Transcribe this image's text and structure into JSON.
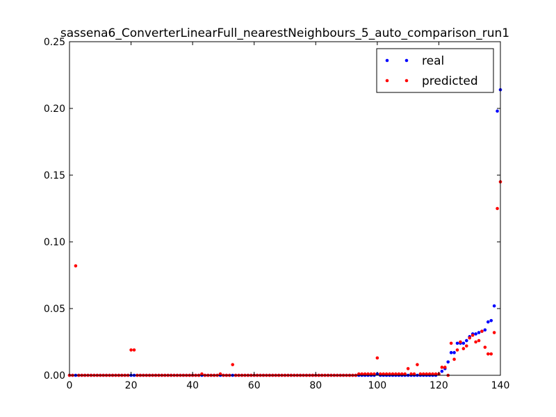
{
  "chart_data": {
    "type": "scatter",
    "title": "sassena6_ConverterLinearFull_nearestNeighbours_5_auto_comparison_run1",
    "xlabel": "",
    "ylabel": "",
    "xlim": [
      0,
      140
    ],
    "ylim": [
      0,
      0.25
    ],
    "x_ticks": [
      "0",
      "20",
      "40",
      "60",
      "80",
      "100",
      "120",
      "140"
    ],
    "y_ticks": [
      "0.00",
      "0.05",
      "0.10",
      "0.15",
      "0.20",
      "0.25"
    ],
    "grid": false,
    "legend_position": "top-right",
    "series": [
      {
        "name": "real",
        "color": "#0000ff",
        "points": [
          [
            0,
            0
          ],
          [
            1,
            0
          ],
          [
            2,
            0
          ],
          [
            3,
            0
          ],
          [
            4,
            0
          ],
          [
            5,
            0
          ],
          [
            6,
            0
          ],
          [
            7,
            0
          ],
          [
            8,
            0
          ],
          [
            9,
            0
          ],
          [
            10,
            0
          ],
          [
            11,
            0
          ],
          [
            12,
            0
          ],
          [
            13,
            0
          ],
          [
            14,
            0
          ],
          [
            15,
            0
          ],
          [
            16,
            0
          ],
          [
            17,
            0
          ],
          [
            18,
            0
          ],
          [
            19,
            0
          ],
          [
            20,
            0
          ],
          [
            21,
            0
          ],
          [
            22,
            0
          ],
          [
            23,
            0
          ],
          [
            24,
            0
          ],
          [
            25,
            0
          ],
          [
            26,
            0
          ],
          [
            27,
            0
          ],
          [
            28,
            0
          ],
          [
            29,
            0
          ],
          [
            30,
            0
          ],
          [
            31,
            0
          ],
          [
            32,
            0
          ],
          [
            33,
            0
          ],
          [
            34,
            0
          ],
          [
            35,
            0
          ],
          [
            36,
            0
          ],
          [
            37,
            0
          ],
          [
            38,
            0
          ],
          [
            39,
            0
          ],
          [
            40,
            0
          ],
          [
            41,
            0
          ],
          [
            42,
            0
          ],
          [
            43,
            0
          ],
          [
            44,
            0
          ],
          [
            45,
            0
          ],
          [
            46,
            0
          ],
          [
            47,
            0
          ],
          [
            48,
            0
          ],
          [
            49,
            0
          ],
          [
            50,
            0
          ],
          [
            51,
            0
          ],
          [
            52,
            0
          ],
          [
            53,
            0
          ],
          [
            54,
            0
          ],
          [
            55,
            0
          ],
          [
            56,
            0
          ],
          [
            57,
            0
          ],
          [
            58,
            0
          ],
          [
            59,
            0
          ],
          [
            60,
            0
          ],
          [
            61,
            0
          ],
          [
            62,
            0
          ],
          [
            63,
            0
          ],
          [
            64,
            0
          ],
          [
            65,
            0
          ],
          [
            66,
            0
          ],
          [
            67,
            0
          ],
          [
            68,
            0
          ],
          [
            69,
            0
          ],
          [
            70,
            0
          ],
          [
            71,
            0
          ],
          [
            72,
            0
          ],
          [
            73,
            0
          ],
          [
            74,
            0
          ],
          [
            75,
            0
          ],
          [
            76,
            0
          ],
          [
            77,
            0
          ],
          [
            78,
            0
          ],
          [
            79,
            0
          ],
          [
            80,
            0
          ],
          [
            81,
            0
          ],
          [
            82,
            0
          ],
          [
            83,
            0
          ],
          [
            84,
            0
          ],
          [
            85,
            0
          ],
          [
            86,
            0
          ],
          [
            87,
            0
          ],
          [
            88,
            0
          ],
          [
            89,
            0
          ],
          [
            90,
            0
          ],
          [
            91,
            0
          ],
          [
            92,
            0
          ],
          [
            93,
            0
          ],
          [
            94,
            0
          ],
          [
            95,
            0
          ],
          [
            96,
            0
          ],
          [
            97,
            0
          ],
          [
            98,
            0
          ],
          [
            99,
            0
          ],
          [
            100,
            0.001
          ],
          [
            101,
            0
          ],
          [
            102,
            0
          ],
          [
            103,
            0
          ],
          [
            104,
            0
          ],
          [
            105,
            0
          ],
          [
            106,
            0
          ],
          [
            107,
            0
          ],
          [
            108,
            0
          ],
          [
            109,
            0
          ],
          [
            110,
            0
          ],
          [
            111,
            0
          ],
          [
            112,
            0
          ],
          [
            113,
            0
          ],
          [
            114,
            0
          ],
          [
            115,
            0
          ],
          [
            116,
            0
          ],
          [
            117,
            0
          ],
          [
            118,
            0
          ],
          [
            119,
            0
          ],
          [
            120,
            0.001
          ],
          [
            121,
            0.003
          ],
          [
            122,
            0.005
          ],
          [
            123,
            0.01
          ],
          [
            124,
            0.017
          ],
          [
            125,
            0.017
          ],
          [
            126,
            0.024
          ],
          [
            127,
            0.024
          ],
          [
            128,
            0.024
          ],
          [
            129,
            0.026
          ],
          [
            130,
            0.029
          ],
          [
            131,
            0.031
          ],
          [
            132,
            0.031
          ],
          [
            133,
            0.032
          ],
          [
            134,
            0.033
          ],
          [
            135,
            0.034
          ],
          [
            136,
            0.04
          ],
          [
            137,
            0.041
          ],
          [
            138,
            0.052
          ],
          [
            139,
            0.198
          ],
          [
            140,
            0.214
          ]
        ]
      },
      {
        "name": "predicted",
        "color": "#ff0000",
        "points": [
          [
            0,
            0
          ],
          [
            1,
            0
          ],
          [
            2,
            0.082
          ],
          [
            3,
            0
          ],
          [
            4,
            0
          ],
          [
            5,
            0
          ],
          [
            6,
            0
          ],
          [
            7,
            0
          ],
          [
            8,
            0
          ],
          [
            9,
            0
          ],
          [
            10,
            0
          ],
          [
            11,
            0
          ],
          [
            12,
            0
          ],
          [
            13,
            0
          ],
          [
            14,
            0
          ],
          [
            15,
            0
          ],
          [
            16,
            0
          ],
          [
            17,
            0
          ],
          [
            18,
            0
          ],
          [
            19,
            0
          ],
          [
            20,
            0.019
          ],
          [
            21,
            0.019
          ],
          [
            22,
            0
          ],
          [
            23,
            0
          ],
          [
            24,
            0
          ],
          [
            25,
            0
          ],
          [
            26,
            0
          ],
          [
            27,
            0
          ],
          [
            28,
            0
          ],
          [
            29,
            0
          ],
          [
            30,
            0
          ],
          [
            31,
            0
          ],
          [
            32,
            0
          ],
          [
            33,
            0
          ],
          [
            34,
            0
          ],
          [
            35,
            0
          ],
          [
            36,
            0
          ],
          [
            37,
            0
          ],
          [
            38,
            0
          ],
          [
            39,
            0
          ],
          [
            40,
            0
          ],
          [
            41,
            0
          ],
          [
            42,
            0
          ],
          [
            43,
            0.001
          ],
          [
            44,
            0
          ],
          [
            45,
            0
          ],
          [
            46,
            0
          ],
          [
            47,
            0
          ],
          [
            48,
            0
          ],
          [
            49,
            0.001
          ],
          [
            50,
            0
          ],
          [
            51,
            0
          ],
          [
            52,
            0
          ],
          [
            53,
            0.008
          ],
          [
            54,
            0
          ],
          [
            55,
            0
          ],
          [
            56,
            0
          ],
          [
            57,
            0
          ],
          [
            58,
            0
          ],
          [
            59,
            0
          ],
          [
            60,
            0
          ],
          [
            61,
            0
          ],
          [
            62,
            0
          ],
          [
            63,
            0
          ],
          [
            64,
            0
          ],
          [
            65,
            0
          ],
          [
            66,
            0
          ],
          [
            67,
            0
          ],
          [
            68,
            0
          ],
          [
            69,
            0
          ],
          [
            70,
            0
          ],
          [
            71,
            0
          ],
          [
            72,
            0
          ],
          [
            73,
            0
          ],
          [
            74,
            0
          ],
          [
            75,
            0
          ],
          [
            76,
            0
          ],
          [
            77,
            0
          ],
          [
            78,
            0
          ],
          [
            79,
            0
          ],
          [
            80,
            0
          ],
          [
            81,
            0
          ],
          [
            82,
            0
          ],
          [
            83,
            0
          ],
          [
            84,
            0
          ],
          [
            85,
            0
          ],
          [
            86,
            0
          ],
          [
            87,
            0
          ],
          [
            88,
            0
          ],
          [
            89,
            0
          ],
          [
            90,
            0
          ],
          [
            91,
            0
          ],
          [
            92,
            0
          ],
          [
            93,
            0
          ],
          [
            94,
            0.001
          ],
          [
            95,
            0.001
          ],
          [
            96,
            0.001
          ],
          [
            97,
            0.001
          ],
          [
            98,
            0.001
          ],
          [
            99,
            0.001
          ],
          [
            100,
            0.013
          ],
          [
            101,
            0.001
          ],
          [
            102,
            0.001
          ],
          [
            103,
            0.001
          ],
          [
            104,
            0.001
          ],
          [
            105,
            0.001
          ],
          [
            106,
            0.001
          ],
          [
            107,
            0.001
          ],
          [
            108,
            0.001
          ],
          [
            109,
            0.001
          ],
          [
            110,
            0.005
          ],
          [
            111,
            0.001
          ],
          [
            112,
            0.001
          ],
          [
            113,
            0.008
          ],
          [
            114,
            0.001
          ],
          [
            115,
            0.001
          ],
          [
            116,
            0.001
          ],
          [
            117,
            0.001
          ],
          [
            118,
            0.001
          ],
          [
            119,
            0.001
          ],
          [
            120,
            0.001
          ],
          [
            121,
            0.006
          ],
          [
            122,
            0.006
          ],
          [
            123,
            0
          ],
          [
            124,
            0.024
          ],
          [
            125,
            0.012
          ],
          [
            126,
            0.019
          ],
          [
            127,
            0.025
          ],
          [
            128,
            0.02
          ],
          [
            129,
            0.022
          ],
          [
            130,
            0.028
          ],
          [
            131,
            0.03
          ],
          [
            132,
            0.025
          ],
          [
            133,
            0.026
          ],
          [
            134,
            0.033
          ],
          [
            135,
            0.021
          ],
          [
            136,
            0.016
          ],
          [
            137,
            0.016
          ],
          [
            138,
            0.032
          ],
          [
            139,
            0.125
          ],
          [
            140,
            0.145
          ]
        ]
      }
    ]
  }
}
